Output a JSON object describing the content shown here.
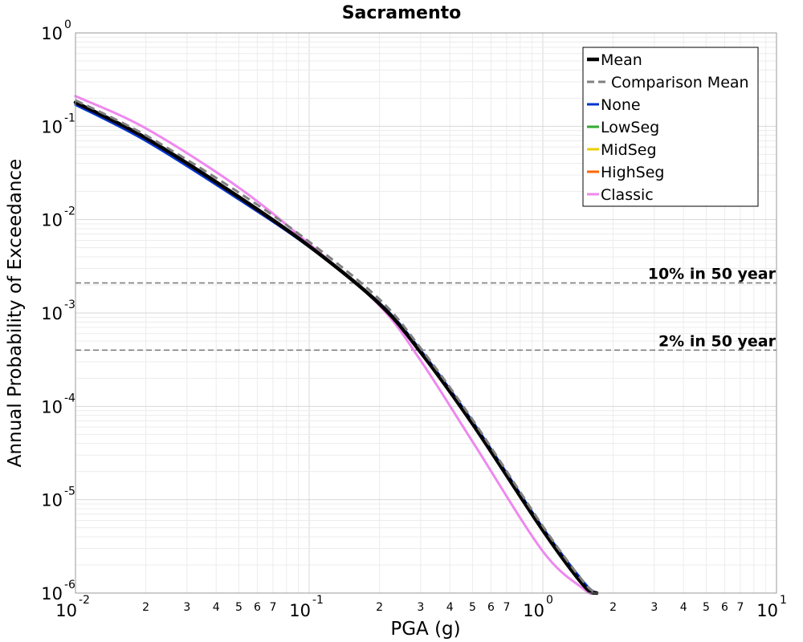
{
  "chart_data": {
    "type": "line",
    "title": "Sacramento",
    "xlabel": "PGA (g)",
    "ylabel": "Annual Probability of Exceedance",
    "x_scale": "log",
    "y_scale": "log",
    "xlim": [
      0.01,
      10
    ],
    "ylim": [
      1e-06,
      1
    ],
    "grid": true,
    "legend_position": "top-right",
    "x_major_ticks": [
      {
        "base": "10",
        "exp": "-2"
      },
      {
        "base": "10",
        "exp": "-1"
      },
      {
        "base": "10",
        "exp": "0"
      },
      {
        "base": "10",
        "exp": "1"
      }
    ],
    "y_major_ticks": [
      {
        "base": "10",
        "exp": "0"
      },
      {
        "base": "10",
        "exp": "-1"
      },
      {
        "base": "10",
        "exp": "-2"
      },
      {
        "base": "10",
        "exp": "-3"
      },
      {
        "base": "10",
        "exp": "-4"
      },
      {
        "base": "10",
        "exp": "-5"
      },
      {
        "base": "10",
        "exp": "-6"
      }
    ],
    "x_minor_labels": [
      "2",
      "3",
      "4",
      "5",
      "6",
      "7"
    ],
    "series": [
      {
        "name": "Mean",
        "color": "#000000",
        "style": "solid",
        "width": 4.5,
        "x": [
          0.01,
          0.02,
          0.05,
          0.1,
          0.2,
          0.3,
          0.5,
          1.0,
          1.5,
          1.7
        ],
        "y": [
          0.18,
          0.075,
          0.0175,
          0.0052,
          0.00125,
          0.00038,
          6.5e-05,
          4.7e-06,
          1.2e-06,
          1e-06
        ]
      },
      {
        "name": "Comparison Mean",
        "color": "#808080",
        "style": "dashed",
        "width": 3,
        "x": [
          0.01,
          0.02,
          0.05,
          0.1,
          0.2,
          0.3,
          0.5,
          1.0,
          1.5,
          1.7
        ],
        "y": [
          0.19,
          0.08,
          0.0195,
          0.0058,
          0.0014,
          0.00042,
          7.2e-05,
          5.2e-06,
          1.3e-06,
          1e-06
        ]
      },
      {
        "name": "None",
        "color": "#0033cc",
        "style": "solid",
        "width": 3,
        "x": [
          0.01,
          0.02,
          0.05,
          0.1,
          0.2,
          0.3,
          0.5,
          1.0,
          1.5,
          1.7
        ],
        "y": [
          0.17,
          0.07,
          0.0165,
          0.0051,
          0.00128,
          0.0004,
          6.9e-05,
          5e-06,
          1.3e-06,
          1e-06
        ]
      },
      {
        "name": "LowSeg",
        "color": "#33aa33",
        "style": "solid",
        "width": 3,
        "x": [],
        "y": []
      },
      {
        "name": "MidSeg",
        "color": "#eecc00",
        "style": "solid",
        "width": 3,
        "x": [],
        "y": []
      },
      {
        "name": "HighSeg",
        "color": "#ff6600",
        "style": "solid",
        "width": 3,
        "x": [],
        "y": []
      },
      {
        "name": "Classic",
        "color": "#ee88ee",
        "style": "solid",
        "width": 3,
        "x": [
          0.01,
          0.02,
          0.05,
          0.1,
          0.2,
          0.3,
          0.5,
          1.0,
          1.5,
          1.62
        ],
        "y": [
          0.21,
          0.095,
          0.022,
          0.0055,
          0.0012,
          0.00031,
          4.2e-05,
          2.8e-06,
          1.1e-06,
          1e-06
        ]
      }
    ],
    "reference_lines": [
      {
        "label": "10% in 50 year",
        "y": 0.0021,
        "color": "#808080"
      },
      {
        "label": "2% in 50 year",
        "y": 0.0004,
        "color": "#808080"
      }
    ]
  }
}
